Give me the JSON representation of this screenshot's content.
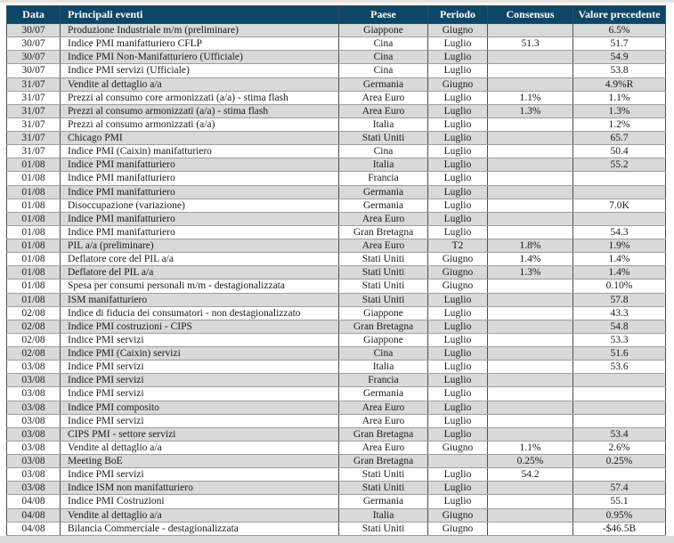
{
  "table": {
    "header_bg": "#0E4666",
    "header_text_color": "#FFFFFF",
    "stripe_color": "#D9D9D9",
    "columns": [
      {
        "key": "date",
        "label": "Data"
      },
      {
        "key": "event",
        "label": "Principali eventi"
      },
      {
        "key": "country",
        "label": "Paese"
      },
      {
        "key": "period",
        "label": "Periodo"
      },
      {
        "key": "consensus",
        "label": "Consensus"
      },
      {
        "key": "previous",
        "label": "Valore precedente"
      }
    ],
    "rows": [
      {
        "date": "30/07",
        "event": "Produzione Industriale m/m (preliminare)",
        "country": "Giappone",
        "period": "Giugno",
        "consensus": "",
        "previous": "6.5%"
      },
      {
        "date": "30/07",
        "event": "Indice PMI manifatturiero CFLP",
        "country": "Cina",
        "period": "Luglio",
        "consensus": "51.3",
        "previous": "51.7"
      },
      {
        "date": "30/07",
        "event": "Indice PMI  Non-Manifatturiero (Ufficiale)",
        "country": "Cina",
        "period": "Luglio",
        "consensus": "",
        "previous": "54.9"
      },
      {
        "date": "30/07",
        "event": "Indice PMI  servizi (Ufficiale)",
        "country": "Cina",
        "period": "Luglio",
        "consensus": "",
        "previous": "53.8"
      },
      {
        "date": "31/07",
        "event": "Vendite al dettaglio a/a",
        "country": "Germania",
        "period": "Giugno",
        "consensus": "",
        "previous": "4.9%R"
      },
      {
        "date": "31/07",
        "event": "Prezzi al consumo core armonizzati (a/a) - stima flash",
        "country": "Area Euro",
        "period": "Luglio",
        "consensus": "1.1%",
        "previous": "1.1%"
      },
      {
        "date": "31/07",
        "event": "Prezzi al consumo armonizzati (a/a) - stima flash",
        "country": "Area Euro",
        "period": "Luglio",
        "consensus": "1.3%",
        "previous": "1.3%"
      },
      {
        "date": "31/07",
        "event": "Prezzi al consumo armonizzati (a/a)",
        "country": "Italia",
        "period": "Luglio",
        "consensus": "",
        "previous": "1.2%"
      },
      {
        "date": "31/07",
        "event": "Chicago PMI",
        "country": "Stati Uniti",
        "period": "Luglio",
        "consensus": "",
        "previous": "65.7"
      },
      {
        "date": "31/07",
        "event": "Indice PMI (Caixin) manifatturiero",
        "country": "Cina",
        "period": "Luglio",
        "consensus": "",
        "previous": "50.4"
      },
      {
        "date": "01/08",
        "event": "Indice PMI manifatturiero",
        "country": "Italia",
        "period": "Luglio",
        "consensus": "",
        "previous": "55.2"
      },
      {
        "date": "01/08",
        "event": "Indice PMI manifatturiero",
        "country": "Francia",
        "period": "Luglio",
        "consensus": "",
        "previous": ""
      },
      {
        "date": "01/08",
        "event": "Indice PMI manifatturiero",
        "country": "Germania",
        "period": "Luglio",
        "consensus": "",
        "previous": ""
      },
      {
        "date": "01/08",
        "event": "Disoccupazione (variazione)",
        "country": "Germania",
        "period": "Luglio",
        "consensus": "",
        "previous": "7.0K"
      },
      {
        "date": "01/08",
        "event": "Indice PMI manifatturiero",
        "country": "Area Euro",
        "period": "Luglio",
        "consensus": "",
        "previous": ""
      },
      {
        "date": "01/08",
        "event": "Indice PMI manifatturiero",
        "country": "Gran Bretagna",
        "period": "Luglio",
        "consensus": "",
        "previous": "54.3"
      },
      {
        "date": "01/08",
        "event": "PIL a/a (preliminare)",
        "country": "Area Euro",
        "period": "T2",
        "consensus": "1.8%",
        "previous": "1.9%"
      },
      {
        "date": "01/08",
        "event": "Deflatore  core del PIL a/a",
        "country": "Stati Uniti",
        "period": "Giugno",
        "consensus": "1.4%",
        "previous": "1.4%"
      },
      {
        "date": "01/08",
        "event": "Deflatore del PIL a/a",
        "country": "Stati Uniti",
        "period": "Giugno",
        "consensus": "1.3%",
        "previous": "1.4%"
      },
      {
        "date": "01/08",
        "event": "Spesa per consumi personali m/m - destagionalizzata",
        "country": "Stati Uniti",
        "period": "Giugno",
        "consensus": "",
        "previous": "0.10%"
      },
      {
        "date": "01/08",
        "event": "ISM manifatturiero",
        "country": "Stati Uniti",
        "period": "Luglio",
        "consensus": "",
        "previous": "57.8"
      },
      {
        "date": "02/08",
        "event": "Indice di fiducia dei consumatori - non destagionalizzato",
        "country": "Giappone",
        "period": "Luglio",
        "consensus": "",
        "previous": "43.3"
      },
      {
        "date": "02/08",
        "event": "Indice PMI costruzioni - CIPS",
        "country": "Gran Bretagna",
        "period": "Luglio",
        "consensus": "",
        "previous": "54.8"
      },
      {
        "date": "02/08",
        "event": "Indice PMI servizi",
        "country": "Giappone",
        "period": "Luglio",
        "consensus": "",
        "previous": "53.3"
      },
      {
        "date": "02/08",
        "event": "Indice PMI (Caixin) servizi",
        "country": "Cina",
        "period": "Luglio",
        "consensus": "",
        "previous": "51.6"
      },
      {
        "date": "03/08",
        "event": "Indice PMI servizi",
        "country": "Italia",
        "period": "Luglio",
        "consensus": "",
        "previous": "53.6"
      },
      {
        "date": "03/08",
        "event": "Indice PMI servizi",
        "country": "Francia",
        "period": "Luglio",
        "consensus": "",
        "previous": ""
      },
      {
        "date": "03/08",
        "event": "Indice PMI servizi",
        "country": "Germania",
        "period": "Luglio",
        "consensus": "",
        "previous": ""
      },
      {
        "date": "03/08",
        "event": "Indice PMI composito",
        "country": "Area Euro",
        "period": "Luglio",
        "consensus": "",
        "previous": ""
      },
      {
        "date": "03/08",
        "event": "Indice PMI servizi",
        "country": "Area Euro",
        "period": "Luglio",
        "consensus": "",
        "previous": ""
      },
      {
        "date": "03/08",
        "event": "CIPS PMI - settore servizi",
        "country": "Gran Bretagna",
        "period": "Luglio",
        "consensus": "",
        "previous": "53.4"
      },
      {
        "date": "03/08",
        "event": "Vendite al dettaglio a/a",
        "country": "Area Euro",
        "period": "Giugno",
        "consensus": "1.1%",
        "previous": "2.6%"
      },
      {
        "date": "03/08",
        "event": "Meeting BoE",
        "country": "Gran Bretagna",
        "period": "",
        "consensus": "0.25%",
        "previous": "0.25%"
      },
      {
        "date": "03/08",
        "event": "Indice PMI servizi",
        "country": "Stati Uniti",
        "period": "Luglio",
        "consensus": "54.2",
        "previous": ""
      },
      {
        "date": "03/08",
        "event": "Indice ISM non manifatturiero",
        "country": "Stati Uniti",
        "period": "Luglio",
        "consensus": "",
        "previous": "57.4"
      },
      {
        "date": "04/08",
        "event": "Indice PMI  Costruzioni",
        "country": "Germania",
        "period": "Luglio",
        "consensus": "",
        "previous": "55.1"
      },
      {
        "date": "04/08",
        "event": "Vendite al dettaglio a/a",
        "country": "Italia",
        "period": "Giugno",
        "consensus": "",
        "previous": "0.95%"
      },
      {
        "date": "04/08",
        "event": "Bilancia Commerciale - destagionalizzata",
        "country": "Stati Uniti",
        "period": "Giugno",
        "consensus": "",
        "previous": "-$46.5B"
      }
    ]
  }
}
